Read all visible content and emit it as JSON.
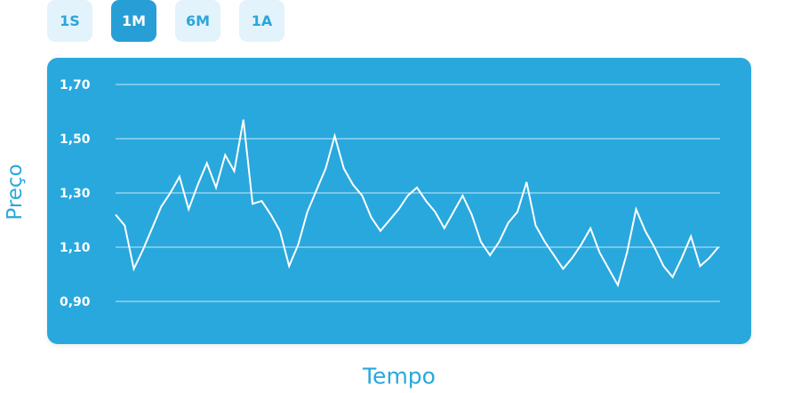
{
  "range_tabs": [
    {
      "label": "1S",
      "active": false
    },
    {
      "label": "1M",
      "active": true
    },
    {
      "label": "6M",
      "active": false
    },
    {
      "label": "1A",
      "active": false
    }
  ],
  "colors": {
    "accent": "#29a8dd",
    "active_tab": "#279fd6",
    "inactive_tab_bg": "#e3f3fb",
    "line": "#ffffff"
  },
  "chart_data": {
    "type": "line",
    "xlabel": "Tempo",
    "ylabel": "Preço",
    "ylim": [
      0.9,
      1.7
    ],
    "yticks": [
      "1,70",
      "1,50",
      "1,30",
      "1,10",
      "0,90"
    ],
    "ytick_values": [
      1.7,
      1.5,
      1.3,
      1.1,
      0.9
    ],
    "grid": true,
    "series": [
      {
        "values": [
          1.22,
          1.18,
          1.02,
          1.09,
          1.17,
          1.25,
          1.3,
          1.36,
          1.24,
          1.33,
          1.41,
          1.32,
          1.44,
          1.38,
          1.57,
          1.26,
          1.27,
          1.22,
          1.16,
          1.03,
          1.11,
          1.23,
          1.31,
          1.39,
          1.51,
          1.39,
          1.33,
          1.29,
          1.21,
          1.16,
          1.2,
          1.24,
          1.29,
          1.32,
          1.27,
          1.23,
          1.17,
          1.23,
          1.29,
          1.22,
          1.12,
          1.07,
          1.12,
          1.19,
          1.23,
          1.34,
          1.18,
          1.12,
          1.07,
          1.02,
          1.06,
          1.11,
          1.17,
          1.08,
          1.02,
          0.96,
          1.08,
          1.24,
          1.16,
          1.1,
          1.03,
          0.99,
          1.06,
          1.14,
          1.03,
          1.06,
          1.1
        ]
      }
    ]
  }
}
